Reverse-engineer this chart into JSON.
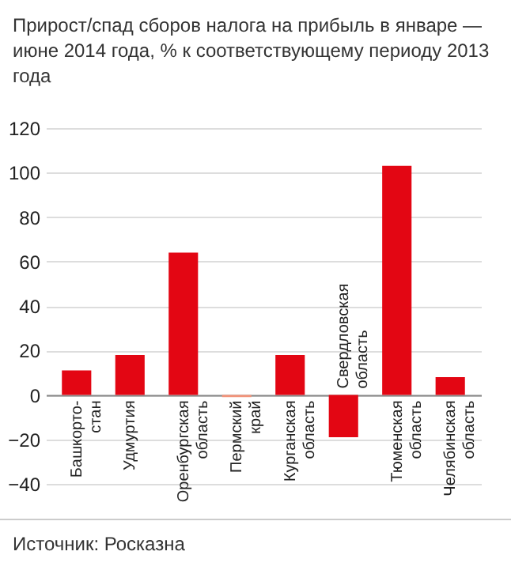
{
  "chart_data": {
    "type": "bar",
    "title": "Прирост/спад сборов налога на прибыль в январе — июне 2014 года, % к соответствующему периоду 2013 года",
    "categories": [
      "Башкорто-стан",
      "Удмуртия",
      "Оренбургская область",
      "Пермский край",
      "Курганская область",
      "Свердловская область",
      "Тюменская область",
      "Челябинская область"
    ],
    "values": [
      11,
      18,
      64,
      -1,
      18,
      -19,
      103,
      8
    ],
    "colors": [
      "#e30613",
      "#e30613",
      "#e30613",
      "#f2947a",
      "#e30613",
      "#e30613",
      "#e30613",
      "#e30613"
    ],
    "ylim": [
      -40,
      120
    ],
    "yticks": [
      -40,
      -20,
      0,
      20,
      40,
      60,
      80,
      100,
      120
    ],
    "grid": "y",
    "annotations": [
      "Источник: Росказна"
    ]
  }
}
